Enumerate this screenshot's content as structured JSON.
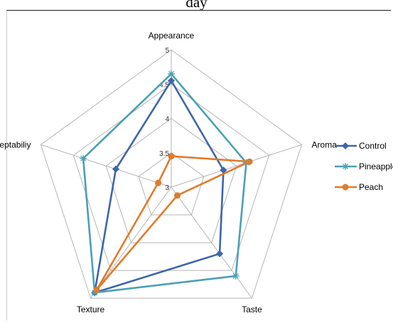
{
  "chart_data": {
    "type": "radar",
    "title": "day",
    "axes": [
      "Appearance",
      "Aroma",
      "Taste",
      "Texture",
      "Overall acceptabiliy"
    ],
    "rlim": [
      3,
      5
    ],
    "ticks": [
      "3",
      "3.5",
      "4",
      "4.5",
      "5"
    ],
    "series": [
      {
        "name": "Control",
        "color": "#3e66a8",
        "marker": "diamond",
        "values": [
          4.55,
          3.8,
          4.2,
          4.9,
          3.85
        ]
      },
      {
        "name": "Pineapple",
        "color": "#4aa0b5",
        "marker": "asterisk",
        "values": [
          4.65,
          4.15,
          4.6,
          4.9,
          4.35
        ]
      },
      {
        "name": "Peach",
        "color": "#e07b2c",
        "marker": "circle",
        "values": [
          3.45,
          4.2,
          3.15,
          4.85,
          3.2
        ]
      }
    ],
    "legend_position": "right",
    "grid": true
  }
}
